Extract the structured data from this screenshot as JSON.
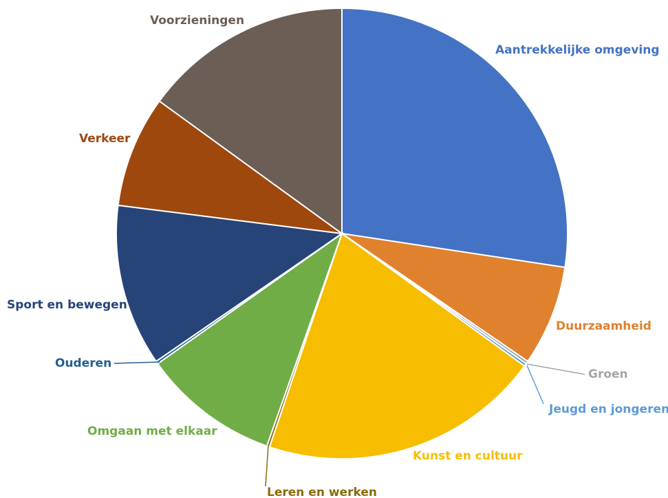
{
  "chart_data": {
    "type": "pie",
    "categories": [
      "Aantrekkelijke omgeving",
      "Duurzaamheid",
      "Groen",
      "Jeugd en jongeren",
      "Kunst en cultuur",
      "Leren en werken",
      "Omgaan met elkaar",
      "Ouderen",
      "Sport en bewegen",
      "Verkeer",
      "Voorzieningen"
    ],
    "values": [
      27.4,
      7.2,
      0.2,
      0.2,
      20.2,
      0.2,
      9.8,
      0.2,
      11.6,
      8.0,
      15.0
    ],
    "colors": [
      "#4472c4",
      "#e0812e",
      "#a5a5a5",
      "#5b9bd5",
      "#f7bd00",
      "#8a6b0a",
      "#70ad47",
      "#255e91",
      "#264478",
      "#9e480e",
      "#6b5e55"
    ]
  }
}
